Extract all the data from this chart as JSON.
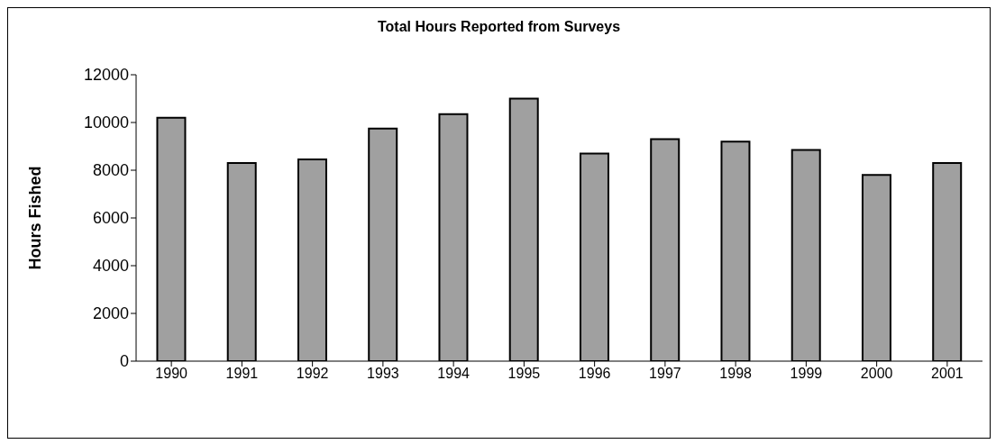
{
  "chart_data": {
    "type": "bar",
    "title": "Total Hours Reported from Surveys",
    "ylabel": "Hours Fished",
    "categories": [
      "1990",
      "1991",
      "1992",
      "1993",
      "1994",
      "1995",
      "1996",
      "1997",
      "1998",
      "1999",
      "2000",
      "2001"
    ],
    "values": [
      10200,
      8300,
      8450,
      9750,
      10350,
      11000,
      8700,
      9300,
      9200,
      8850,
      7800,
      8300
    ],
    "color": "#a0a0a0",
    "ylim": [
      0,
      12000
    ],
    "yticks": [
      0,
      2000,
      4000,
      6000,
      8000,
      10000,
      12000
    ],
    "grid": false,
    "legend": false
  }
}
